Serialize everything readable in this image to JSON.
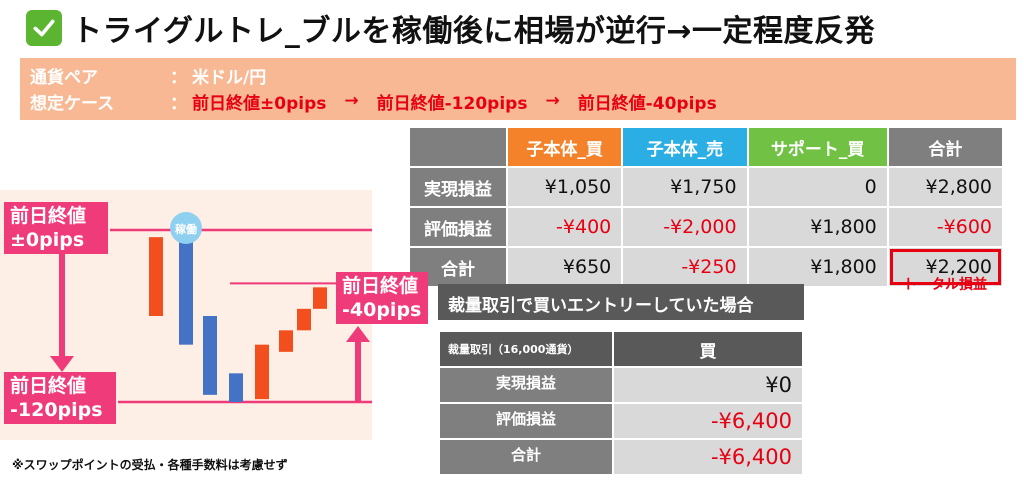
{
  "header": {
    "title": "トライグルトレ_ブルを稼働後に相場が逆行→一定程度反発",
    "check_icon": "check-icon"
  },
  "info": {
    "pair_label": "通貨ペア",
    "pair_sep": "：",
    "pair_value": "米ドル/円",
    "case_label": "想定ケース",
    "case_sep": "：",
    "case_steps": [
      "前日終値±0pips",
      "前日終値-120pips",
      "前日終値-40pips"
    ],
    "arrow": "→"
  },
  "result_table": {
    "headers": [
      "子本体_買",
      "子本体_売",
      "サポート_買",
      "合計"
    ],
    "header_colors": [
      "#f4822a",
      "#2aaee4",
      "#71c144",
      "#7f7f7f"
    ],
    "rows": [
      {
        "label": "実現損益",
        "cells": [
          "¥1,050",
          "¥1,750",
          "0",
          "¥2,800"
        ],
        "negative": [
          false,
          false,
          false,
          false
        ]
      },
      {
        "label": "評価損益",
        "cells": [
          "-¥400",
          "-¥2,000",
          "¥1,800",
          "-¥600"
        ],
        "negative": [
          true,
          true,
          false,
          true
        ]
      },
      {
        "label": "合計",
        "cells": [
          "¥650",
          "-¥250",
          "¥1,800",
          "¥2,200"
        ],
        "negative": [
          false,
          true,
          false,
          false
        ]
      }
    ],
    "total_note": "トータル損益"
  },
  "chart": {
    "start_label": "前日終値\n±0pips",
    "low_label": "前日終値\n-120pips",
    "rebound_label": "前日終値\n-40pips",
    "badge": "稼働",
    "levels_pips": {
      "start": 0,
      "low": -120,
      "rebound": -40
    },
    "candles": [
      {
        "open": -5,
        "close": -60,
        "color": "#f24e1e"
      },
      {
        "open": 0,
        "close": -80,
        "color": "#4472c4"
      },
      {
        "open": -60,
        "close": -115,
        "color": "#4472c4"
      },
      {
        "open": -100,
        "close": -120,
        "color": "#4472c4"
      },
      {
        "open": -118,
        "close": -80,
        "color": "#f24e1e"
      },
      {
        "open": -85,
        "close": -70,
        "color": "#f24e1e"
      },
      {
        "open": -70,
        "close": -55,
        "color": "#f24e1e"
      },
      {
        "open": -55,
        "close": -40,
        "color": "#f24e1e"
      }
    ]
  },
  "spot_table": {
    "title": "裁量取引で買いエントリーしていた場合",
    "header_left": "裁量取引（16,000通貨）",
    "header_right": "買",
    "rows": [
      {
        "label": "実現損益",
        "value": "¥0",
        "negative": false
      },
      {
        "label": "評価損益",
        "value": "-¥6,400",
        "negative": true
      },
      {
        "label": "合計",
        "value": "-¥6,400",
        "negative": true
      }
    ]
  },
  "footnote": "※スワップポイントの受払・各種手数料は考慮せず"
}
